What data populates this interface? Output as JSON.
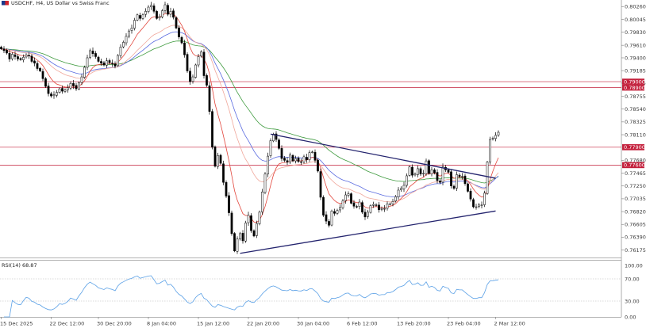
{
  "header": {
    "symbol": "USDCHF",
    "timeframe": "H4",
    "separator": ", ",
    "description": "US Dollar vs Swiss Franc"
  },
  "rsi_header": "RSI(14) 68.87",
  "colors": {
    "candle": "#000000",
    "ma_fast": "#e2463c",
    "ma_mid": "#f0a79b",
    "ma_blue": "#5a6be0",
    "ma_green": "#3d9a3d",
    "level": "#c4203c",
    "trendline": "#24246e",
    "rsi": "#5aa0e6"
  },
  "chart_data": [
    {
      "type": "line",
      "title": "USDCHF, H4: US Dollar vs Swiss Franc",
      "xlabel": "",
      "ylabel": "",
      "ylim": [
        0.7605,
        0.8037
      ],
      "x_ticks": [
        "15 Dec 2025",
        "22 Dec 12:00",
        "30 Dec 20:00",
        "8 Jan 04:00",
        "15 Jan 12:00",
        "22 Jan 20:00",
        "30 Jan 04:00",
        "6 Feb 12:00",
        "13 Feb 20:00",
        "23 Feb 04:00",
        "2 Mar 12:00"
      ],
      "y_ticks": [
        "0.80260",
        "0.80045",
        "0.79830",
        "0.79610",
        "0.79400",
        "0.79185",
        "0.78975",
        "0.78755",
        "0.78540",
        "0.78325",
        "0.78110",
        "0.77680",
        "0.77465",
        "0.77250",
        "0.77035",
        "0.76820",
        "0.76605",
        "0.76390",
        "0.76175"
      ],
      "level_labels": [
        "0.79000",
        "0.78900",
        "0.77900",
        "0.77600"
      ],
      "grid": false,
      "series": [
        {
          "name": "USDCHF",
          "close": [
            0.7955,
            0.7952,
            0.7948,
            0.7938,
            0.7946,
            0.7942,
            0.7938,
            0.7937,
            0.7941,
            0.7945,
            0.7943,
            0.7934,
            0.7931,
            0.7922,
            0.7918,
            0.7905,
            0.7892,
            0.788,
            0.7876,
            0.7878,
            0.7882,
            0.7888,
            0.7884,
            0.7886,
            0.789,
            0.7897,
            0.7893,
            0.7888,
            0.7898,
            0.7908,
            0.7924,
            0.794,
            0.7952,
            0.7947,
            0.7942,
            0.7934,
            0.7931,
            0.7928,
            0.7935,
            0.7932,
            0.793,
            0.7926,
            0.7944,
            0.7958,
            0.7966,
            0.7976,
            0.7985,
            0.799,
            0.8003,
            0.8012,
            0.8006,
            0.8012,
            0.8018,
            0.8025,
            0.8028,
            0.8018,
            0.8006,
            0.8009,
            0.8019,
            0.8029,
            0.8013,
            0.8018,
            0.8008,
            0.799,
            0.7975,
            0.7965,
            0.7945,
            0.7918,
            0.79,
            0.7908,
            0.7928,
            0.7942,
            0.795,
            0.791,
            0.7894,
            0.785,
            0.779,
            0.7758,
            0.7776,
            0.7763,
            0.7731,
            0.7708,
            0.768,
            0.7645,
            0.7616,
            0.7636,
            0.7645,
            0.7633,
            0.7663,
            0.7676,
            0.765,
            0.7641,
            0.7662,
            0.7681,
            0.7715,
            0.7745,
            0.7775,
            0.7801,
            0.7812,
            0.7803,
            0.7788,
            0.7771,
            0.7768,
            0.7765,
            0.7777,
            0.7767,
            0.7771,
            0.7766,
            0.7765,
            0.7774,
            0.7769,
            0.7781,
            0.7782,
            0.7768,
            0.775,
            0.7706,
            0.7676,
            0.7666,
            0.7659,
            0.7683,
            0.7679,
            0.7684,
            0.7689,
            0.77,
            0.771,
            0.7712,
            0.7696,
            0.7691,
            0.769,
            0.7698,
            0.7681,
            0.7673,
            0.7681,
            0.7692,
            0.7694,
            0.7693,
            0.7685,
            0.7687,
            0.7687,
            0.7695,
            0.7695,
            0.7699,
            0.7707,
            0.7718,
            0.7721,
            0.7726,
            0.7742,
            0.7757,
            0.7743,
            0.7745,
            0.7754,
            0.7745,
            0.7746,
            0.7767,
            0.7746,
            0.7752,
            0.7747,
            0.7734,
            0.7731,
            0.7757,
            0.7752,
            0.7748,
            0.7725,
            0.7721,
            0.7744,
            0.7741,
            0.7741,
            0.7729,
            0.7716,
            0.7703,
            0.769,
            0.769,
            0.7693,
            0.7693,
            0.7713,
            0.7765,
            0.7803,
            0.7805,
            0.781,
            0.7815
          ]
        },
        {
          "name": "MA fast",
          "color": "#e2463c"
        },
        {
          "name": "MA mid",
          "color": "#f0a79b"
        },
        {
          "name": "MA blue",
          "color": "#5a6be0"
        },
        {
          "name": "MA green",
          "color": "#3d9a3d"
        }
      ],
      "horizontal_levels": [
        0.79,
        0.789,
        0.779,
        0.776
      ],
      "trendlines": [
        {
          "from": [
            97,
            0.7812
          ],
          "to": [
            178,
            0.7738
          ]
        },
        {
          "from": [
            86,
            0.7612
          ],
          "to": [
            178,
            0.7683
          ]
        }
      ]
    },
    {
      "type": "line",
      "title": "RSI(14) 68.87",
      "ylim": [
        0,
        100
      ],
      "y_ticks": [
        "100.00",
        "70.00",
        "30.00",
        "0.00"
      ],
      "levels": [
        70,
        30
      ],
      "last_value": 68.87,
      "grid": false
    }
  ]
}
